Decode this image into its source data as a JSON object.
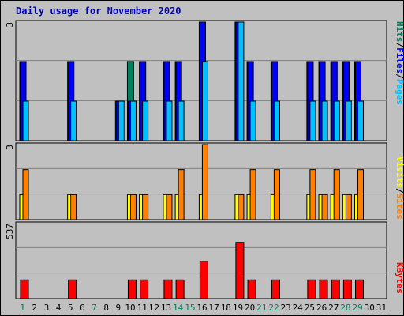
{
  "title": "Daily usage for November 2020",
  "colors": {
    "hits": "#00805c",
    "files": "#0000ff",
    "pages": "#00c0ff",
    "visits": "#ffff00",
    "sites": "#ff8000",
    "kbytes": "#ff0000",
    "weekend_label": "#00805c",
    "weekday_label": "#000000"
  },
  "right_labels": {
    "top": [
      {
        "text": "Hits",
        "color_key": "hits"
      },
      {
        "text": "/",
        "color_key": "weekday_label"
      },
      {
        "text": "Files",
        "color_key": "files"
      },
      {
        "text": "/",
        "color_key": "weekday_label"
      },
      {
        "text": "Pages",
        "color_key": "pages"
      }
    ],
    "middle": [
      {
        "text": "Visits",
        "color_key": "visits"
      },
      {
        "text": "/",
        "color_key": "weekday_label"
      },
      {
        "text": "Sites",
        "color_key": "sites"
      }
    ],
    "bottom": [
      {
        "text": "KBytes",
        "color_key": "kbytes"
      }
    ]
  },
  "chart_data": {
    "type": "bar",
    "title": "Daily usage for November 2020",
    "categories": [
      "1",
      "2",
      "3",
      "4",
      "5",
      "6",
      "7",
      "8",
      "9",
      "10",
      "11",
      "12",
      "13",
      "14",
      "15",
      "16",
      "17",
      "18",
      "19",
      "20",
      "21",
      "22",
      "23",
      "24",
      "25",
      "26",
      "27",
      "28",
      "29",
      "30",
      "31"
    ],
    "weekend_days": [
      1,
      7,
      14,
      15,
      21,
      22,
      28,
      29
    ],
    "panels": [
      {
        "name": "top",
        "max_label": "3",
        "ymax": 3,
        "series": [
          {
            "name": "Hits",
            "values": [
              2,
              0,
              0,
              0,
              2,
              0,
              0,
              0,
              1,
              2,
              2,
              0,
              2,
              2,
              0,
              3,
              0,
              0,
              3,
              2,
              0,
              2,
              0,
              0,
              2,
              2,
              2,
              2,
              2,
              0,
              0
            ]
          },
          {
            "name": "Files",
            "values": [
              2,
              0,
              0,
              0,
              2,
              0,
              0,
              0,
              1,
              1,
              2,
              0,
              2,
              2,
              0,
              3,
              0,
              0,
              3,
              2,
              0,
              2,
              0,
              0,
              2,
              2,
              2,
              2,
              2,
              0,
              0
            ]
          },
          {
            "name": "Pages",
            "values": [
              1,
              0,
              0,
              0,
              1,
              0,
              0,
              0,
              1,
              1,
              1,
              0,
              1,
              1,
              0,
              2,
              0,
              0,
              3,
              1,
              0,
              1,
              0,
              0,
              1,
              1,
              1,
              1,
              1,
              0,
              0
            ]
          }
        ]
      },
      {
        "name": "middle",
        "max_label": "3",
        "ymax": 3,
        "series": [
          {
            "name": "Visits",
            "values": [
              1,
              0,
              0,
              0,
              1,
              0,
              0,
              0,
              0,
              1,
              1,
              0,
              1,
              1,
              0,
              1,
              0,
              0,
              1,
              1,
              0,
              1,
              0,
              0,
              1,
              1,
              1,
              1,
              1,
              0,
              0
            ]
          },
          {
            "name": "Sites",
            "values": [
              2,
              0,
              0,
              0,
              1,
              0,
              0,
              0,
              0,
              1,
              1,
              0,
              1,
              2,
              0,
              3,
              0,
              0,
              1,
              2,
              0,
              2,
              0,
              0,
              2,
              1,
              2,
              1,
              2,
              0,
              0
            ]
          }
        ]
      },
      {
        "name": "bottom",
        "max_label": "537",
        "ymax": 537,
        "series": [
          {
            "name": "KBytes",
            "values": [
              134,
              0,
              0,
              0,
              134,
              0,
              0,
              0,
              0,
              134,
              134,
              0,
              134,
              134,
              0,
              268,
              0,
              0,
              403,
              134,
              0,
              134,
              0,
              0,
              134,
              134,
              134,
              134,
              134,
              0,
              0
            ]
          }
        ]
      }
    ]
  }
}
